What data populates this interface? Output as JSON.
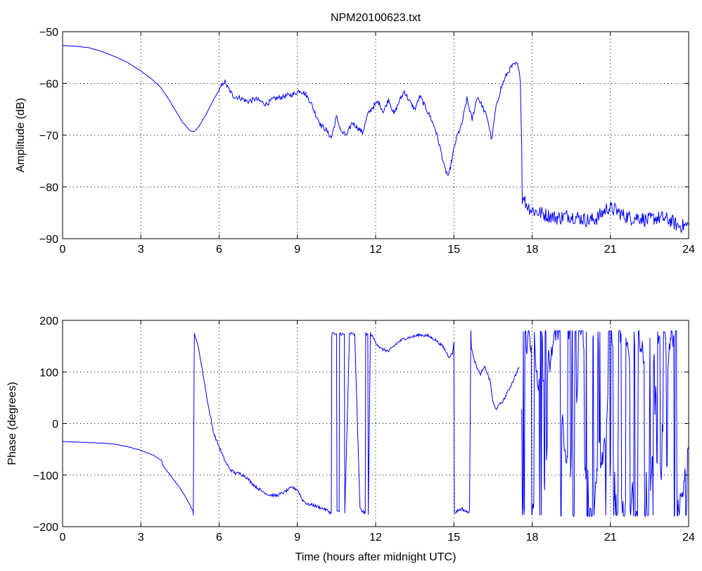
{
  "chart_data": [
    {
      "type": "line",
      "title": "NPM20100623.txt",
      "xlabel": "",
      "ylabel": "Amplitude (dB)",
      "xlim": [
        0,
        24
      ],
      "ylim": [
        -90,
        -50
      ],
      "xticks": [
        0,
        3,
        6,
        9,
        12,
        15,
        18,
        21,
        24
      ],
      "yticks": [
        -90,
        -80,
        -70,
        -60,
        -50
      ],
      "grid": true,
      "line_color": "#0000ff",
      "series": [
        {
          "x": [
            0,
            0.5,
            1.0,
            1.5,
            2.0,
            2.5,
            3.0,
            3.5,
            3.8,
            3.85,
            4.0,
            4.3,
            4.6,
            4.9,
            5.05,
            5.2,
            5.5,
            5.8,
            6.1,
            6.2,
            6.35,
            6.55,
            6.8,
            7.1,
            7.4,
            7.8,
            8.1,
            8.5,
            8.9,
            9.1,
            9.3,
            9.5,
            9.7,
            9.9,
            10.1,
            10.3,
            10.5,
            10.7,
            10.9,
            11.1,
            11.3,
            11.5,
            11.7,
            11.9,
            12.1,
            12.3,
            12.5,
            12.7,
            12.9,
            13.1,
            13.3,
            13.5,
            13.7,
            13.9,
            14.1,
            14.3,
            14.5,
            14.65,
            14.8,
            14.95,
            15.1,
            15.3,
            15.5,
            15.7,
            15.9,
            16.1,
            16.3,
            16.45,
            16.6,
            16.8,
            17.0,
            17.2,
            17.4,
            17.5,
            17.55,
            17.6,
            17.62,
            17.65,
            17.8,
            18.0,
            18.3,
            18.6,
            19.0,
            19.4,
            19.8,
            20.2,
            20.5,
            20.7,
            20.9,
            21.2,
            21.5,
            21.8,
            22.1,
            22.4,
            22.7,
            23.0,
            23.3,
            23.6,
            24.0
          ],
          "y": [
            -52.7,
            -52.8,
            -53.1,
            -53.8,
            -54.8,
            -56.0,
            -57.6,
            -59.5,
            -61.0,
            -61.5,
            -62.5,
            -65.0,
            -67.5,
            -69.2,
            -69.3,
            -68.5,
            -66.0,
            -63.0,
            -60.5,
            -59.5,
            -61.0,
            -62.5,
            -62.8,
            -63.5,
            -63.0,
            -64.0,
            -63.0,
            -62.5,
            -62.0,
            -61.3,
            -62.0,
            -63.5,
            -66.0,
            -68.0,
            -69.0,
            -70.5,
            -66.5,
            -69.5,
            -70.0,
            -67.5,
            -68.5,
            -69.5,
            -66.0,
            -64.5,
            -63.5,
            -65.5,
            -63.0,
            -66.0,
            -63.5,
            -61.5,
            -63.5,
            -65.0,
            -62.5,
            -64.5,
            -66.5,
            -69.0,
            -73.0,
            -76.5,
            -78.0,
            -74.0,
            -70.5,
            -68.0,
            -63.0,
            -67.0,
            -62.5,
            -64.5,
            -67.0,
            -71.0,
            -65.0,
            -61.0,
            -58.5,
            -56.8,
            -56.2,
            -57.0,
            -60.0,
            -72.0,
            -83.0,
            -82.0,
            -83.5,
            -84.5,
            -85.0,
            -85.5,
            -86.0,
            -85.5,
            -86.0,
            -86.5,
            -86.0,
            -85.0,
            -84.0,
            -84.5,
            -85.5,
            -86.0,
            -85.8,
            -86.5,
            -86.0,
            -86.0,
            -86.5,
            -87.5,
            -87.5
          ]
        }
      ]
    },
    {
      "type": "line",
      "title": "",
      "xlabel": "Time (hours after midnight UTC)",
      "ylabel": "Phase (degrees)",
      "xlim": [
        0,
        24
      ],
      "ylim": [
        -200,
        200
      ],
      "xticks": [
        0,
        3,
        6,
        9,
        12,
        15,
        18,
        21,
        24
      ],
      "yticks": [
        -200,
        -100,
        0,
        100,
        200
      ],
      "grid": true,
      "line_color": "#0000ff",
      "series": [
        {
          "x": [
            0,
            0.5,
            1.0,
            1.5,
            2.0,
            2.5,
            3.0,
            3.5,
            3.8,
            3.85,
            3.9,
            4.2,
            4.5,
            4.8,
            5.0,
            5.01,
            5.05,
            5.2,
            5.4,
            5.6,
            5.8,
            6.0,
            6.2,
            6.4,
            6.6,
            6.8,
            7.0,
            7.3,
            7.6,
            7.9,
            8.2,
            8.5,
            8.8,
            9.0,
            9.2,
            9.4,
            9.6,
            9.8,
            10.0,
            10.2,
            10.3,
            10.32,
            10.5,
            10.52,
            10.6,
            10.62,
            10.8,
            10.82,
            11.0,
            11.2,
            11.4,
            11.6,
            11.62,
            11.7,
            11.72,
            11.8,
            12.0,
            12.2,
            12.5,
            12.8,
            13.1,
            13.4,
            13.7,
            14.0,
            14.3,
            14.6,
            14.8,
            14.95,
            15.0,
            15.02,
            15.1,
            15.3,
            15.5,
            15.6,
            15.65,
            15.67,
            15.8,
            16.0,
            16.2,
            16.4,
            16.5,
            16.6,
            16.9,
            17.2,
            17.5
          ],
          "y": [
            -35,
            -36,
            -37,
            -38,
            -40,
            -45,
            -52,
            -62,
            -72,
            -82,
            -85,
            -105,
            -125,
            -150,
            -170,
            -178,
            175,
            150,
            90,
            30,
            -20,
            -45,
            -70,
            -88,
            -96,
            -97,
            -102,
            -118,
            -130,
            -138,
            -140,
            -133,
            -124,
            -128,
            -148,
            -157,
            -158,
            -162,
            -165,
            -170,
            -175,
            175,
            172,
            -172,
            -170,
            175,
            172,
            -175,
            175,
            172,
            -165,
            -175,
            175,
            172,
            -176,
            175,
            158,
            145,
            140,
            155,
            165,
            168,
            172,
            170,
            162,
            148,
            130,
            135,
            160,
            -175,
            -170,
            -165,
            -172,
            -170,
            178,
            150,
            120,
            95,
            110,
            80,
            40,
            28,
            45,
            75,
            110
          ]
        }
      ],
      "noisy_segment": {
        "x_range": [
          17.6,
          24
        ],
        "y_range": [
          -180,
          180
        ],
        "note": "wrapping phase jumps between -180 and 180"
      }
    }
  ]
}
